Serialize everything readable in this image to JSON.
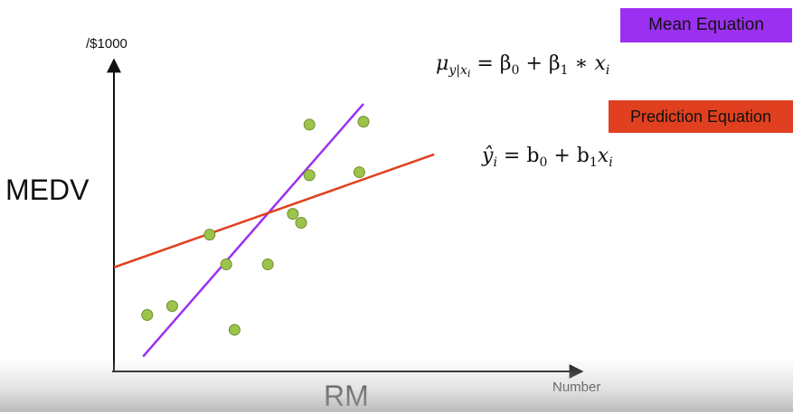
{
  "labels": {
    "unit": "/$1000",
    "ylabel": "MEDV",
    "xlabel": "RM",
    "xunit": "Number"
  },
  "legend": {
    "mean": {
      "label": "Mean Equation",
      "color": "#9b30f0"
    },
    "prediction": {
      "label": "Prediction Equation",
      "color": "#e0401f"
    }
  },
  "equations": {
    "mean": {
      "lhs": "μ",
      "lhs_sub": "y|x",
      "lhs_subsub": "i",
      "rhs": "= β",
      "rhs_sub0": "0",
      "mid": " + β",
      "rhs_sub1": "1",
      "tail": " ∗ x",
      "tail_sub": "i"
    },
    "prediction": {
      "lhs": "ŷ",
      "lhs_sub": "i",
      "rhs": "= b",
      "rhs_sub0": "0",
      "mid": " + b",
      "rhs_sub1": "1",
      "tail": "x",
      "tail_sub": "i"
    }
  },
  "chart_data": {
    "type": "scatter",
    "title": "",
    "xlabel": "RM",
    "ylabel": "MEDV",
    "xlim": [
      0,
      10
    ],
    "ylim": [
      0,
      10
    ],
    "grid": false,
    "axis_ticks": false,
    "points_color": "#9cc34a",
    "points": [
      {
        "x": 0.8,
        "y": 1.9
      },
      {
        "x": 1.4,
        "y": 2.2
      },
      {
        "x": 2.3,
        "y": 4.6
      },
      {
        "x": 2.7,
        "y": 3.6
      },
      {
        "x": 2.9,
        "y": 1.4
      },
      {
        "x": 3.7,
        "y": 3.6
      },
      {
        "x": 4.3,
        "y": 5.3
      },
      {
        "x": 4.5,
        "y": 5.0
      },
      {
        "x": 4.7,
        "y": 6.6
      },
      {
        "x": 4.7,
        "y": 8.3
      },
      {
        "x": 5.9,
        "y": 6.7
      },
      {
        "x": 6.0,
        "y": 8.4
      }
    ],
    "lines": [
      {
        "name": "Mean Equation",
        "color": "#9b30f0",
        "x": [
          0.7,
          6.0
        ],
        "y": [
          0.5,
          9.0
        ]
      },
      {
        "name": "Prediction Equation",
        "color": "#e0401f",
        "x": [
          0.0,
          7.7
        ],
        "y": [
          3.5,
          7.3
        ]
      }
    ]
  }
}
